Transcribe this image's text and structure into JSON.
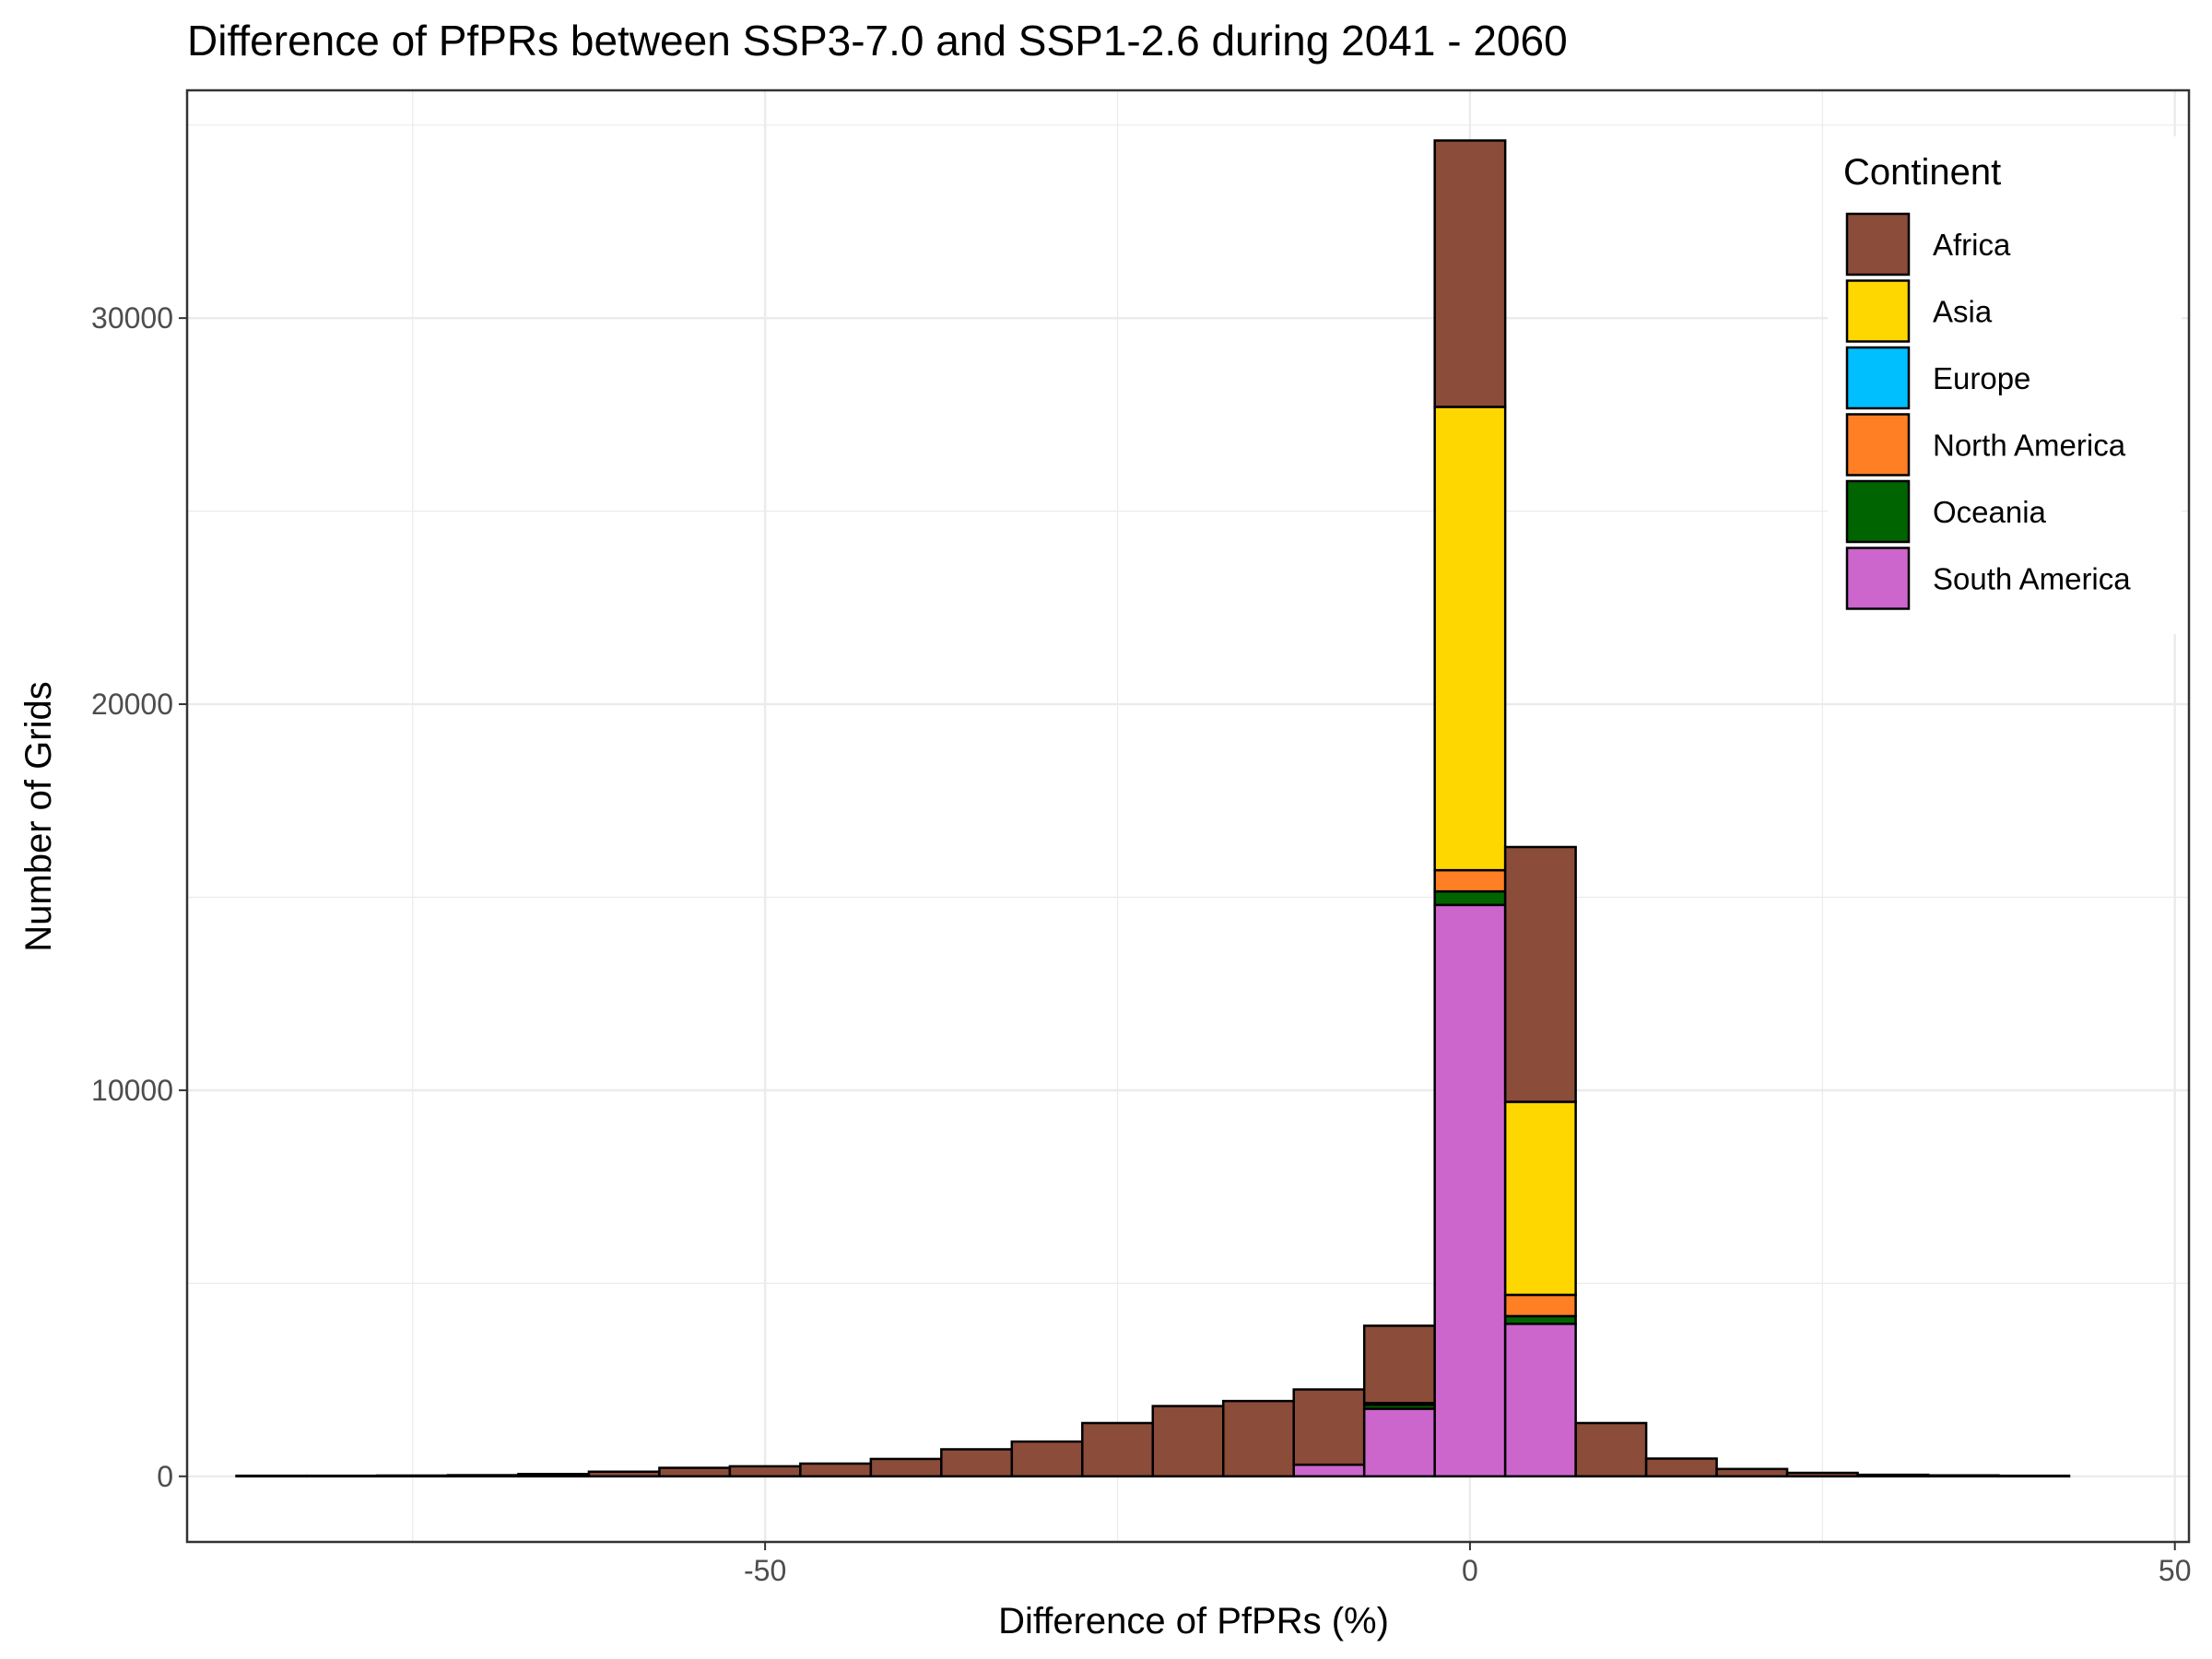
{
  "chart_data": {
    "type": "bar",
    "subtype": "stacked-histogram",
    "title": "Difference of PfPRs between SSP3-7.0 and SSP1-2.6 during 2041 - 2060",
    "xlabel": "Difference of PfPRs (%)",
    "ylabel": "Number of Grids",
    "xlim": [
      -91,
      51
    ],
    "ylim": [
      -1700,
      35900
    ],
    "x_ticks": [
      -50,
      0,
      50
    ],
    "y_ticks": [
      0,
      10000,
      20000,
      30000
    ],
    "x_tick_labels": [
      "-50",
      "0",
      "50"
    ],
    "y_tick_labels": [
      "0",
      "10000",
      "20000",
      "30000"
    ],
    "grid": true,
    "bin_width": 5,
    "bins": [
      -85,
      -80,
      -75,
      -70,
      -65,
      -60,
      -55,
      -50,
      -45,
      -40,
      -35,
      -30,
      -25,
      -20,
      -15,
      -10,
      -5,
      0,
      5,
      10,
      15,
      20,
      25,
      30,
      35,
      40
    ],
    "series": [
      {
        "name": "South America",
        "color": "#CC66CC",
        "values": [
          0,
          0,
          0,
          0,
          0,
          0,
          0,
          0,
          0,
          0,
          0,
          0,
          0,
          0,
          0,
          300,
          1750,
          14800,
          3950,
          0,
          0,
          0,
          0,
          0,
          0,
          0
        ]
      },
      {
        "name": "Oceania",
        "color": "#006400",
        "values": [
          0,
          0,
          0,
          0,
          0,
          0,
          0,
          0,
          0,
          0,
          0,
          0,
          0,
          0,
          0,
          0,
          100,
          350,
          200,
          0,
          0,
          0,
          0,
          0,
          0,
          0
        ]
      },
      {
        "name": "North America",
        "color": "#FF7F24",
        "values": [
          0,
          0,
          0,
          0,
          0,
          0,
          0,
          0,
          0,
          0,
          0,
          0,
          0,
          0,
          0,
          0,
          50,
          550,
          550,
          0,
          0,
          0,
          0,
          0,
          0,
          0
        ]
      },
      {
        "name": "Europe",
        "color": "#00BFFF",
        "values": [
          0,
          0,
          0,
          0,
          0,
          0,
          0,
          0,
          0,
          0,
          0,
          0,
          0,
          0,
          0,
          0,
          0,
          0,
          0,
          0,
          0,
          0,
          0,
          0,
          0,
          0
        ]
      },
      {
        "name": "Asia",
        "color": "#FFD700",
        "values": [
          0,
          0,
          0,
          0,
          0,
          0,
          0,
          0,
          0,
          0,
          0,
          0,
          0,
          0,
          0,
          0,
          0,
          12000,
          5000,
          0,
          0,
          0,
          0,
          0,
          0,
          0
        ]
      },
      {
        "name": "Africa",
        "color": "#8B4C39",
        "values": [
          15,
          15,
          20,
          30,
          60,
          120,
          220,
          260,
          330,
          450,
          700,
          900,
          1380,
          1820,
          1950,
          1950,
          2000,
          6900,
          6600,
          1380,
          460,
          190,
          90,
          40,
          25,
          15
        ]
      }
    ],
    "legend": {
      "title": "Continent",
      "position": "top-right",
      "entries": [
        "Africa",
        "Asia",
        "Europe",
        "North America",
        "Oceania",
        "South America"
      ]
    }
  }
}
